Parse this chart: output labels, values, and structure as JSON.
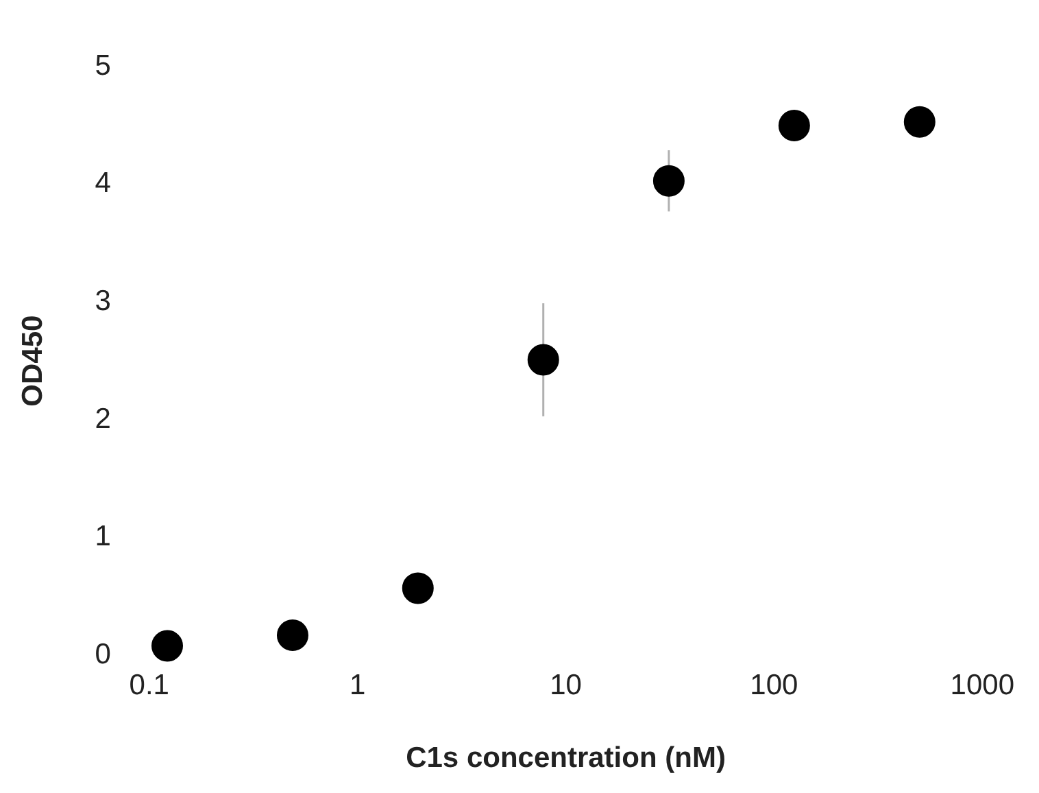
{
  "chart_data": {
    "type": "scatter",
    "xlabel": "C1s concentration (nM)",
    "ylabel": "OD450",
    "x": [
      0.122,
      0.488,
      1.95,
      7.8,
      31.25,
      125,
      500
    ],
    "values": [
      0.08,
      0.17,
      0.57,
      2.51,
      4.03,
      4.5,
      4.53
    ],
    "errors": [
      null,
      null,
      null,
      0.48,
      0.26,
      null,
      null
    ],
    "color": "#000000",
    "marker": "circle",
    "log": "x",
    "grid": false,
    "legend": false,
    "xlim": [
      0.1,
      1000
    ],
    "xticks": [
      0.1,
      1,
      10,
      100,
      1000
    ],
    "ylim": [
      0,
      5
    ],
    "yticks": [
      0,
      1,
      2,
      3,
      4,
      5
    ]
  }
}
